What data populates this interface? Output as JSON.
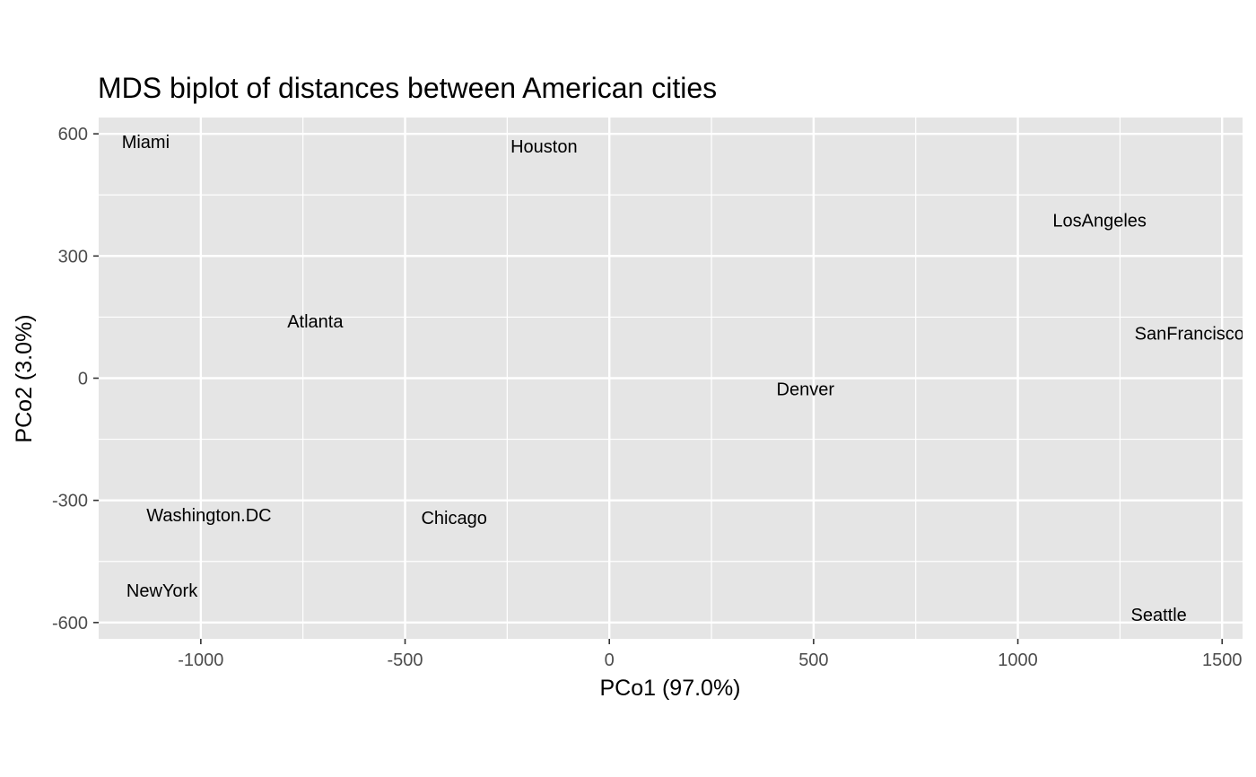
{
  "chart_data": {
    "type": "scatter",
    "title": "MDS biplot of distances between American cities",
    "xlabel": "PCo1 (97.0%)",
    "ylabel": "PCo2 (3.0%)",
    "xlim": [
      -1250,
      1550
    ],
    "ylim": [
      -640,
      640
    ],
    "xticks": [
      -1000,
      -500,
      0,
      500,
      1000,
      1500
    ],
    "xtick_labels": [
      "-1000",
      "-500",
      "0",
      "500",
      "1000",
      "1500"
    ],
    "xminor": [
      -750,
      -250,
      250,
      750,
      1250
    ],
    "yticks": [
      -600,
      -300,
      0,
      300,
      600
    ],
    "ytick_labels": [
      "-600",
      "-300",
      "0",
      "300",
      "600"
    ],
    "yminor": [
      -450,
      -150,
      150,
      450
    ],
    "grid": true,
    "background": "#e5e5e5",
    "grid_color": "#ffffff",
    "points": [
      {
        "label": "Miami",
        "x": -1135,
        "y": 580
      },
      {
        "label": "Houston",
        "x": -160,
        "y": 570
      },
      {
        "label": "LosAngeles",
        "x": 1200,
        "y": 388
      },
      {
        "label": "Atlanta",
        "x": -720,
        "y": 140
      },
      {
        "label": "SanFrancisco",
        "x": 1420,
        "y": 110
      },
      {
        "label": "Denver",
        "x": 480,
        "y": -26
      },
      {
        "label": "Washington.DC",
        "x": -980,
        "y": -336
      },
      {
        "label": "Chicago",
        "x": -380,
        "y": -343
      },
      {
        "label": "NewYork",
        "x": -1095,
        "y": -521
      },
      {
        "label": "Seattle",
        "x": 1345,
        "y": -580
      }
    ]
  }
}
